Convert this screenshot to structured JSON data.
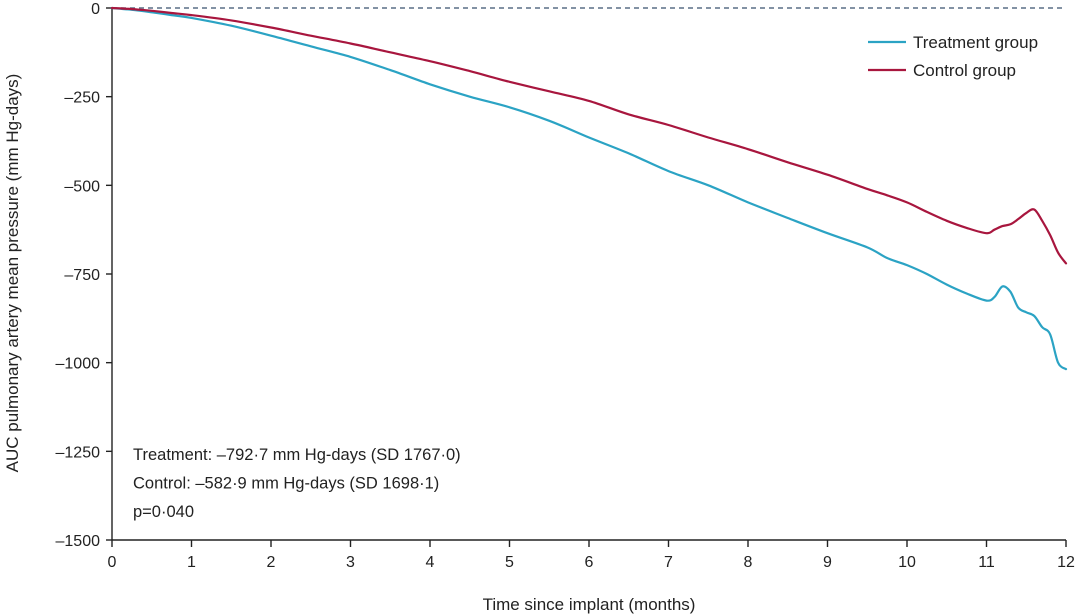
{
  "chart_data": {
    "type": "line",
    "xlabel": "Time since implant (months)",
    "ylabel": "AUC pulmonary artery mean pressure (mm Hg-days)",
    "xlim": [
      0,
      12
    ],
    "ylim": [
      -1500,
      0
    ],
    "xticks": [
      0,
      1,
      2,
      3,
      4,
      5,
      6,
      7,
      8,
      9,
      10,
      11,
      12
    ],
    "yticks": [
      0,
      -250,
      -500,
      -750,
      -1000,
      -1250,
      -1500
    ],
    "ytick_labels": [
      "0",
      "–250",
      "–500",
      "–750",
      "–1000",
      "–1250",
      "–1500"
    ],
    "grid": false,
    "reference_line": {
      "y": 0,
      "style": "dashed",
      "color": "#5a6f85"
    },
    "legend_position": "top-right",
    "series": [
      {
        "name": "Treatment group",
        "color": "#2ba3c4",
        "x": [
          0,
          0.25,
          0.5,
          0.75,
          1,
          1.5,
          2,
          2.5,
          3,
          3.5,
          4,
          4.5,
          5,
          5.5,
          6,
          6.5,
          7,
          7.5,
          8,
          8.5,
          9,
          9.5,
          9.75,
          10,
          10.25,
          10.5,
          10.75,
          11,
          11.1,
          11.2,
          11.3,
          11.4,
          11.5,
          11.6,
          11.7,
          11.8,
          11.9,
          12
        ],
        "y": [
          0,
          -5,
          -12,
          -20,
          -28,
          -50,
          -78,
          -108,
          -138,
          -175,
          -215,
          -250,
          -280,
          -318,
          -365,
          -410,
          -460,
          -500,
          -548,
          -592,
          -635,
          -675,
          -705,
          -725,
          -750,
          -780,
          -805,
          -825,
          -815,
          -785,
          -800,
          -845,
          -858,
          -868,
          -900,
          -920,
          -1000,
          -1018
        ]
      },
      {
        "name": "Control group",
        "color": "#a8163e",
        "x": [
          0,
          0.25,
          0.5,
          0.75,
          1,
          1.5,
          2,
          2.5,
          3,
          3.5,
          4,
          4.5,
          5,
          5.5,
          6,
          6.5,
          7,
          7.5,
          8,
          8.5,
          9,
          9.5,
          9.75,
          10,
          10.25,
          10.5,
          10.75,
          11,
          11.1,
          11.2,
          11.3,
          11.4,
          11.5,
          11.6,
          11.7,
          11.8,
          11.9,
          12
        ],
        "y": [
          0,
          -3,
          -8,
          -14,
          -20,
          -35,
          -55,
          -78,
          -100,
          -125,
          -150,
          -178,
          -208,
          -235,
          -262,
          -300,
          -330,
          -365,
          -398,
          -435,
          -470,
          -510,
          -528,
          -548,
          -575,
          -600,
          -620,
          -635,
          -625,
          -615,
          -610,
          -595,
          -578,
          -568,
          -600,
          -640,
          -690,
          -720
        ]
      }
    ],
    "annotations": [
      "Treatment: –792·7 mm Hg-days (SD 1767·0)",
      "Control: –582·9 mm Hg-days (SD 1698·1)",
      "p=0·040"
    ]
  }
}
